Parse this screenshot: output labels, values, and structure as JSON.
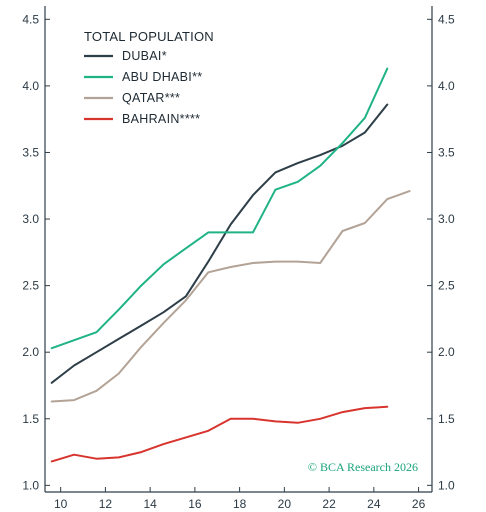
{
  "chart_data": {
    "type": "line",
    "title": "",
    "xlabel": "",
    "ylabel": "",
    "xlim": [
      9.3,
      26.6
    ],
    "ylim": [
      0.95,
      4.6
    ],
    "x_ticks": [
      10,
      12,
      14,
      16,
      18,
      20,
      22,
      24,
      26
    ],
    "x_tick_labels": [
      "10",
      "12",
      "14",
      "16",
      "18",
      "20",
      "22",
      "24",
      "26"
    ],
    "y_ticks": [
      1.0,
      1.5,
      2.0,
      2.5,
      3.0,
      3.5,
      4.0,
      4.5
    ],
    "y_tick_labels": [
      "1.0",
      "1.5",
      "2.0",
      "2.5",
      "3.0",
      "3.5",
      "4.0",
      "4.5"
    ],
    "grid": false,
    "legend": {
      "title": "TOTAL POPULATION",
      "placement": "top-left"
    },
    "series": [
      {
        "name": "DUBAI*",
        "color": "#2e3e48",
        "x": [
          9.6,
          10.6,
          11.6,
          12.6,
          13.6,
          14.6,
          15.6,
          16.6,
          17.6,
          18.6,
          19.6,
          20.6,
          21.6,
          22.6,
          23.6,
          24.6
        ],
        "values": [
          1.77,
          1.9,
          2.0,
          2.1,
          2.2,
          2.3,
          2.42,
          2.68,
          2.96,
          3.18,
          3.35,
          3.42,
          3.48,
          3.55,
          3.65,
          3.86
        ]
      },
      {
        "name": "ABU DHABI**",
        "color": "#1fb386",
        "x": [
          9.6,
          10.6,
          11.6,
          12.6,
          13.6,
          14.6,
          15.6,
          16.6,
          17.6,
          18.6,
          19.6,
          20.6,
          21.6,
          22.6,
          23.6,
          24.6
        ],
        "values": [
          2.03,
          2.09,
          2.15,
          2.32,
          2.5,
          2.66,
          2.78,
          2.9,
          2.9,
          2.9,
          3.22,
          3.28,
          3.4,
          3.57,
          3.76,
          4.13
        ]
      },
      {
        "name": "QATAR***",
        "color": "#b3a397",
        "x": [
          9.6,
          10.6,
          11.6,
          12.6,
          13.6,
          14.6,
          15.6,
          16.6,
          17.6,
          18.6,
          19.6,
          20.6,
          21.6,
          22.6,
          23.6,
          24.6,
          25.6
        ],
        "values": [
          1.63,
          1.64,
          1.71,
          1.84,
          2.04,
          2.22,
          2.39,
          2.6,
          2.64,
          2.67,
          2.68,
          2.68,
          2.67,
          2.91,
          2.97,
          3.15,
          3.21
        ]
      },
      {
        "name": "BAHRAIN****",
        "color": "#d8342e",
        "x": [
          9.6,
          10.6,
          11.6,
          12.6,
          13.6,
          14.6,
          15.6,
          16.6,
          17.6,
          18.6,
          19.6,
          20.6,
          21.6,
          22.6,
          23.6,
          24.6
        ],
        "values": [
          1.18,
          1.23,
          1.2,
          1.21,
          1.25,
          1.31,
          1.36,
          1.41,
          1.5,
          1.5,
          1.48,
          1.47,
          1.5,
          1.55,
          1.58,
          1.59
        ]
      }
    ],
    "annotations": [
      {
        "text": "© BCA Research 2026",
        "placement": "bottom-right"
      }
    ]
  }
}
